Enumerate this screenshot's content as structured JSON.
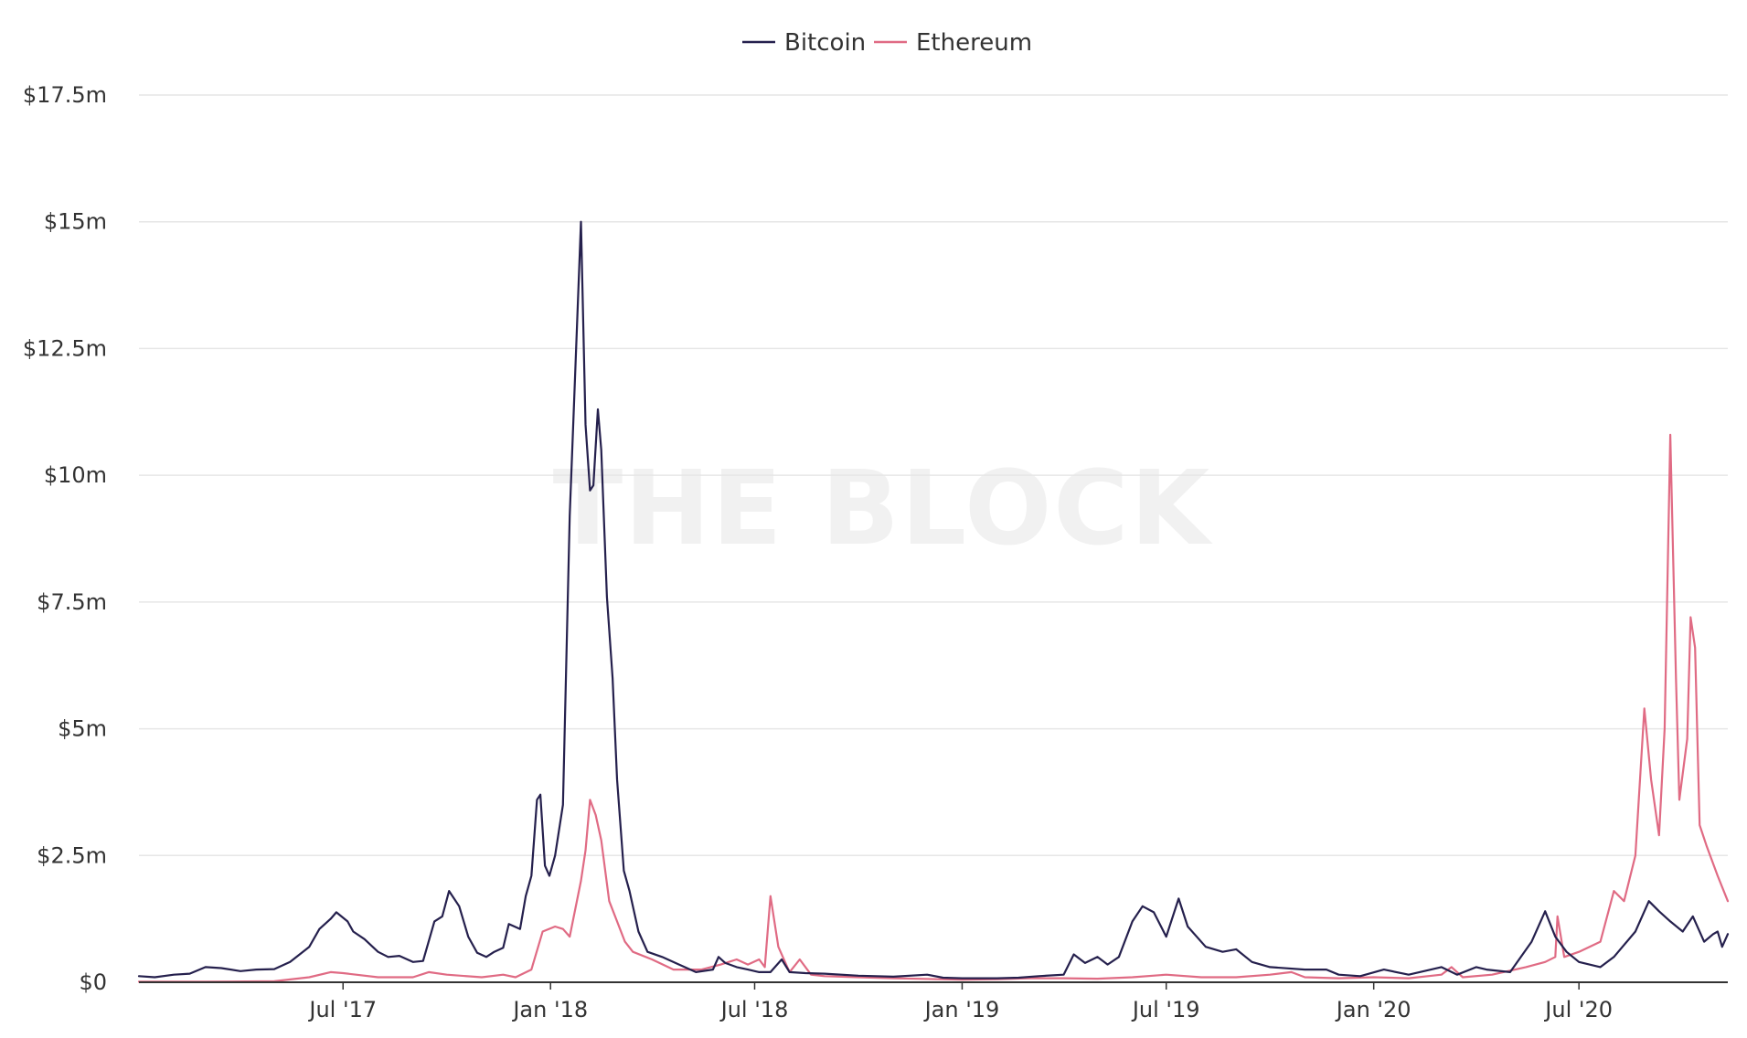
{
  "watermark": "THE BLOCK",
  "chart_data": {
    "type": "line",
    "title": "",
    "xlabel": "",
    "ylabel": "",
    "ylim": [
      0,
      17500000
    ],
    "xlim": [
      "2017-01-01",
      "2020-11-10"
    ],
    "grid": true,
    "legend_position": "top-center",
    "y_ticks": [
      {
        "value": 0,
        "label": "$0"
      },
      {
        "value": 2500000,
        "label": "$2.5m"
      },
      {
        "value": 5000000,
        "label": "$5m"
      },
      {
        "value": 7500000,
        "label": "$7.5m"
      },
      {
        "value": 10000000,
        "label": "$10m"
      },
      {
        "value": 12500000,
        "label": "$12.5m"
      },
      {
        "value": 15000000,
        "label": "$15m"
      },
      {
        "value": 17500000,
        "label": "$17.5m"
      }
    ],
    "x_ticks": [
      {
        "value": "2017-07-01",
        "label": "Jul '17"
      },
      {
        "value": "2018-01-01",
        "label": "Jan '18"
      },
      {
        "value": "2018-07-01",
        "label": "Jul '18"
      },
      {
        "value": "2019-01-01",
        "label": "Jan '19"
      },
      {
        "value": "2019-07-01",
        "label": "Jul '19"
      },
      {
        "value": "2020-01-01",
        "label": "Jan '20"
      },
      {
        "value": "2020-07-01",
        "label": "Jul '20"
      }
    ],
    "series": [
      {
        "name": "Bitcoin",
        "color": "#25204d",
        "points": [
          [
            "2017-01-01",
            120000
          ],
          [
            "2017-01-15",
            100000
          ],
          [
            "2017-02-01",
            150000
          ],
          [
            "2017-02-15",
            170000
          ],
          [
            "2017-03-01",
            300000
          ],
          [
            "2017-03-15",
            280000
          ],
          [
            "2017-04-01",
            220000
          ],
          [
            "2017-04-15",
            250000
          ],
          [
            "2017-05-01",
            260000
          ],
          [
            "2017-05-15",
            400000
          ],
          [
            "2017-06-01",
            700000
          ],
          [
            "2017-06-10",
            1050000
          ],
          [
            "2017-06-20",
            1250000
          ],
          [
            "2017-06-25",
            1380000
          ],
          [
            "2017-07-05",
            1200000
          ],
          [
            "2017-07-10",
            1000000
          ],
          [
            "2017-07-20",
            850000
          ],
          [
            "2017-08-01",
            600000
          ],
          [
            "2017-08-10",
            500000
          ],
          [
            "2017-08-20",
            520000
          ],
          [
            "2017-09-01",
            400000
          ],
          [
            "2017-09-10",
            420000
          ],
          [
            "2017-09-20",
            1200000
          ],
          [
            "2017-09-27",
            1300000
          ],
          [
            "2017-10-03",
            1800000
          ],
          [
            "2017-10-12",
            1500000
          ],
          [
            "2017-10-20",
            900000
          ],
          [
            "2017-10-28",
            580000
          ],
          [
            "2017-11-05",
            500000
          ],
          [
            "2017-11-12",
            600000
          ],
          [
            "2017-11-20",
            680000
          ],
          [
            "2017-11-25",
            1150000
          ],
          [
            "2017-11-30",
            1100000
          ],
          [
            "2017-12-05",
            1050000
          ],
          [
            "2017-12-10",
            1700000
          ],
          [
            "2017-12-15",
            2100000
          ],
          [
            "2017-12-20",
            3600000
          ],
          [
            "2017-12-23",
            3700000
          ],
          [
            "2017-12-27",
            2300000
          ],
          [
            "2017-12-31",
            2100000
          ],
          [
            "2018-01-05",
            2500000
          ],
          [
            "2018-01-12",
            3500000
          ],
          [
            "2018-01-18",
            9200000
          ],
          [
            "2018-01-22",
            11500000
          ],
          [
            "2018-01-28",
            15000000
          ],
          [
            "2018-02-01",
            11000000
          ],
          [
            "2018-02-05",
            9700000
          ],
          [
            "2018-02-08",
            9800000
          ],
          [
            "2018-02-12",
            11300000
          ],
          [
            "2018-02-15",
            10500000
          ],
          [
            "2018-02-20",
            7600000
          ],
          [
            "2018-02-25",
            6000000
          ],
          [
            "2018-03-01",
            4000000
          ],
          [
            "2018-03-07",
            2200000
          ],
          [
            "2018-03-12",
            1800000
          ],
          [
            "2018-03-20",
            1000000
          ],
          [
            "2018-03-28",
            600000
          ],
          [
            "2018-04-10",
            500000
          ],
          [
            "2018-04-25",
            350000
          ],
          [
            "2018-05-10",
            200000
          ],
          [
            "2018-05-25",
            250000
          ],
          [
            "2018-05-30",
            500000
          ],
          [
            "2018-06-05",
            380000
          ],
          [
            "2018-06-15",
            300000
          ],
          [
            "2018-06-25",
            250000
          ],
          [
            "2018-07-05",
            200000
          ],
          [
            "2018-07-15",
            200000
          ],
          [
            "2018-07-25",
            450000
          ],
          [
            "2018-08-01",
            200000
          ],
          [
            "2018-08-15",
            180000
          ],
          [
            "2018-09-01",
            170000
          ],
          [
            "2018-10-01",
            130000
          ],
          [
            "2018-11-01",
            110000
          ],
          [
            "2018-12-01",
            150000
          ],
          [
            "2018-12-15",
            90000
          ],
          [
            "2019-01-01",
            80000
          ],
          [
            "2019-01-15",
            80000
          ],
          [
            "2019-02-01",
            80000
          ],
          [
            "2019-02-20",
            90000
          ],
          [
            "2019-03-10",
            120000
          ],
          [
            "2019-04-01",
            150000
          ],
          [
            "2019-04-10",
            550000
          ],
          [
            "2019-04-20",
            380000
          ],
          [
            "2019-05-01",
            500000
          ],
          [
            "2019-05-10",
            350000
          ],
          [
            "2019-05-20",
            500000
          ],
          [
            "2019-06-01",
            1200000
          ],
          [
            "2019-06-10",
            1500000
          ],
          [
            "2019-06-20",
            1380000
          ],
          [
            "2019-07-01",
            900000
          ],
          [
            "2019-07-12",
            1650000
          ],
          [
            "2019-07-20",
            1100000
          ],
          [
            "2019-08-05",
            700000
          ],
          [
            "2019-08-20",
            600000
          ],
          [
            "2019-09-01",
            650000
          ],
          [
            "2019-09-15",
            400000
          ],
          [
            "2019-10-01",
            300000
          ],
          [
            "2019-11-01",
            250000
          ],
          [
            "2019-11-20",
            250000
          ],
          [
            "2019-12-01",
            150000
          ],
          [
            "2019-12-20",
            120000
          ],
          [
            "2020-01-10",
            250000
          ],
          [
            "2020-02-01",
            150000
          ],
          [
            "2020-03-01",
            300000
          ],
          [
            "2020-03-15",
            150000
          ],
          [
            "2020-04-01",
            300000
          ],
          [
            "2020-04-10",
            250000
          ],
          [
            "2020-05-01",
            200000
          ],
          [
            "2020-05-20",
            800000
          ],
          [
            "2020-06-01",
            1400000
          ],
          [
            "2020-06-10",
            900000
          ],
          [
            "2020-06-20",
            600000
          ],
          [
            "2020-07-01",
            400000
          ],
          [
            "2020-07-20",
            300000
          ],
          [
            "2020-08-01",
            500000
          ],
          [
            "2020-08-20",
            1000000
          ],
          [
            "2020-09-01",
            1600000
          ],
          [
            "2020-09-10",
            1400000
          ],
          [
            "2020-09-20",
            1200000
          ],
          [
            "2020-10-01",
            1000000
          ],
          [
            "2020-10-10",
            1300000
          ],
          [
            "2020-10-20",
            800000
          ],
          [
            "2020-10-28",
            950000
          ],
          [
            "2020-11-01",
            1000000
          ],
          [
            "2020-11-05",
            700000
          ],
          [
            "2020-11-10",
            950000
          ]
        ]
      },
      {
        "name": "Ethereum",
        "color": "#e06b84",
        "points": [
          [
            "2017-01-01",
            10000
          ],
          [
            "2017-03-01",
            10000
          ],
          [
            "2017-05-01",
            20000
          ],
          [
            "2017-06-01",
            100000
          ],
          [
            "2017-06-20",
            200000
          ],
          [
            "2017-07-01",
            180000
          ],
          [
            "2017-08-01",
            100000
          ],
          [
            "2017-09-01",
            100000
          ],
          [
            "2017-09-15",
            200000
          ],
          [
            "2017-10-01",
            150000
          ],
          [
            "2017-11-01",
            100000
          ],
          [
            "2017-11-20",
            150000
          ],
          [
            "2017-12-01",
            100000
          ],
          [
            "2017-12-15",
            250000
          ],
          [
            "2017-12-25",
            1000000
          ],
          [
            "2018-01-05",
            1100000
          ],
          [
            "2018-01-12",
            1050000
          ],
          [
            "2018-01-18",
            900000
          ],
          [
            "2018-01-28",
            2000000
          ],
          [
            "2018-02-01",
            2600000
          ],
          [
            "2018-02-05",
            3600000
          ],
          [
            "2018-02-10",
            3300000
          ],
          [
            "2018-02-15",
            2800000
          ],
          [
            "2018-02-22",
            1600000
          ],
          [
            "2018-03-01",
            1200000
          ],
          [
            "2018-03-08",
            800000
          ],
          [
            "2018-03-15",
            600000
          ],
          [
            "2018-04-01",
            450000
          ],
          [
            "2018-04-20",
            250000
          ],
          [
            "2018-05-15",
            250000
          ],
          [
            "2018-06-01",
            350000
          ],
          [
            "2018-06-15",
            450000
          ],
          [
            "2018-06-25",
            350000
          ],
          [
            "2018-07-05",
            450000
          ],
          [
            "2018-07-10",
            300000
          ],
          [
            "2018-07-15",
            1700000
          ],
          [
            "2018-07-22",
            700000
          ],
          [
            "2018-08-01",
            200000
          ],
          [
            "2018-08-10",
            450000
          ],
          [
            "2018-08-20",
            150000
          ],
          [
            "2018-09-01",
            120000
          ],
          [
            "2018-10-01",
            100000
          ],
          [
            "2018-11-01",
            80000
          ],
          [
            "2019-01-01",
            50000
          ],
          [
            "2019-02-01",
            60000
          ],
          [
            "2019-03-01",
            80000
          ],
          [
            "2019-04-01",
            80000
          ],
          [
            "2019-05-01",
            70000
          ],
          [
            "2019-06-01",
            100000
          ],
          [
            "2019-07-01",
            150000
          ],
          [
            "2019-08-01",
            100000
          ],
          [
            "2019-09-01",
            100000
          ],
          [
            "2019-10-01",
            150000
          ],
          [
            "2019-10-20",
            200000
          ],
          [
            "2019-11-01",
            100000
          ],
          [
            "2019-12-01",
            80000
          ],
          [
            "2020-01-01",
            100000
          ],
          [
            "2020-02-01",
            80000
          ],
          [
            "2020-03-01",
            150000
          ],
          [
            "2020-03-10",
            300000
          ],
          [
            "2020-03-20",
            100000
          ],
          [
            "2020-04-15",
            150000
          ],
          [
            "2020-05-15",
            300000
          ],
          [
            "2020-06-01",
            400000
          ],
          [
            "2020-06-10",
            500000
          ],
          [
            "2020-06-12",
            1300000
          ],
          [
            "2020-06-18",
            500000
          ],
          [
            "2020-07-01",
            600000
          ],
          [
            "2020-07-20",
            800000
          ],
          [
            "2020-08-01",
            1800000
          ],
          [
            "2020-08-10",
            1600000
          ],
          [
            "2020-08-20",
            2500000
          ],
          [
            "2020-08-28",
            5400000
          ],
          [
            "2020-09-03",
            4000000
          ],
          [
            "2020-09-10",
            2900000
          ],
          [
            "2020-09-15",
            5000000
          ],
          [
            "2020-09-20",
            10800000
          ],
          [
            "2020-09-25",
            6000000
          ],
          [
            "2020-09-28",
            3600000
          ],
          [
            "2020-10-05",
            4800000
          ],
          [
            "2020-10-08",
            7200000
          ],
          [
            "2020-10-12",
            6600000
          ],
          [
            "2020-10-16",
            3100000
          ],
          [
            "2020-10-22",
            2700000
          ],
          [
            "2020-11-01",
            2100000
          ],
          [
            "2020-11-10",
            1600000
          ]
        ]
      }
    ]
  }
}
